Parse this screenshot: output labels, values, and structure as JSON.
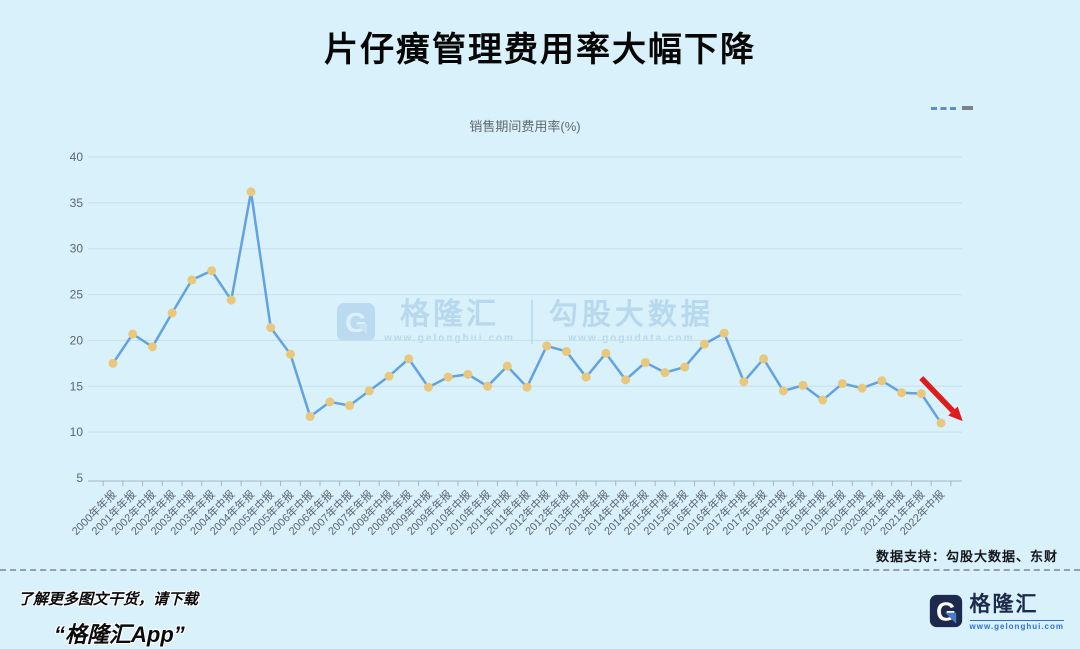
{
  "header": {
    "title": "片仔癀管理费用率大幅下降"
  },
  "chart_data": {
    "type": "line",
    "title": "销售期间费用率(%)",
    "series_name": "销售期间费用率(%)",
    "categories": [
      "2000年年报",
      "2001年年报",
      "2002年中报",
      "2002年年报",
      "2003年中报",
      "2003年年报",
      "2004年中报",
      "2004年年报",
      "2005年中报",
      "2005年年报",
      "2006年中报",
      "2006年年报",
      "2007年中报",
      "2007年年报",
      "2008年中报",
      "2008年年报",
      "2009年中报",
      "2009年年报",
      "2010年中报",
      "2010年年报",
      "2011年中报",
      "2011年年报",
      "2012年中报",
      "2012年年报",
      "2013年中报",
      "2013年年报",
      "2014年中报",
      "2014年年报",
      "2015年中报",
      "2015年年报",
      "2016年中报",
      "2016年年报",
      "2017年中报",
      "2017年年报",
      "2018年中报",
      "2018年年报",
      "2019年中报",
      "2019年年报",
      "2020年中报",
      "2020年年报",
      "2021年中报",
      "2021年年报",
      "2022年中报"
    ],
    "values": [
      17.5,
      20.7,
      19.3,
      23.0,
      26.6,
      27.6,
      24.4,
      36.2,
      21.4,
      18.5,
      11.7,
      13.3,
      12.9,
      14.5,
      16.1,
      18.0,
      14.9,
      16.0,
      16.3,
      15.0,
      17.2,
      14.9,
      19.4,
      18.8,
      16.0,
      18.6,
      15.7,
      17.6,
      16.5,
      17.1,
      19.6,
      20.8,
      15.5,
      18.0,
      14.5,
      15.1,
      13.5,
      15.3,
      14.8,
      15.6,
      14.3,
      14.2,
      11.0
    ],
    "ylim": [
      5,
      40
    ],
    "y_ticks": [
      5,
      10,
      15,
      20,
      25,
      30,
      35,
      40
    ],
    "grid": "horizontal",
    "legend_position": "none",
    "annotation_arrow": {
      "from_index": 41,
      "from_value": 15.9,
      "to_index": 43.1,
      "to_value": 11.2,
      "color": "#e01b1b"
    },
    "colors": {
      "line": "#63a2e1",
      "point": "#e9c87c",
      "grid": "#c8dfe9",
      "axis": "#a4b6c0",
      "tick_text": "#5b666d",
      "background": "#d9f1fb"
    }
  },
  "toolbox": {
    "dashed_mark": "dashed-line",
    "solid_mark": "solid-line"
  },
  "watermark": {
    "brand": "格隆汇",
    "brand_url": "www.gelonghui.com",
    "data_brand": "勾股大数据",
    "data_url": "www.gogudata.com",
    "logo_letter": "G"
  },
  "footer": {
    "data_support": "数据支持：勾股大数据、东财",
    "promo_line1": "了解更多图文干货，请下载",
    "promo_line2": "“格隆汇App”",
    "logo_text": "格隆汇",
    "logo_url": "www.gelonghui.com",
    "logo_letter": "G"
  }
}
